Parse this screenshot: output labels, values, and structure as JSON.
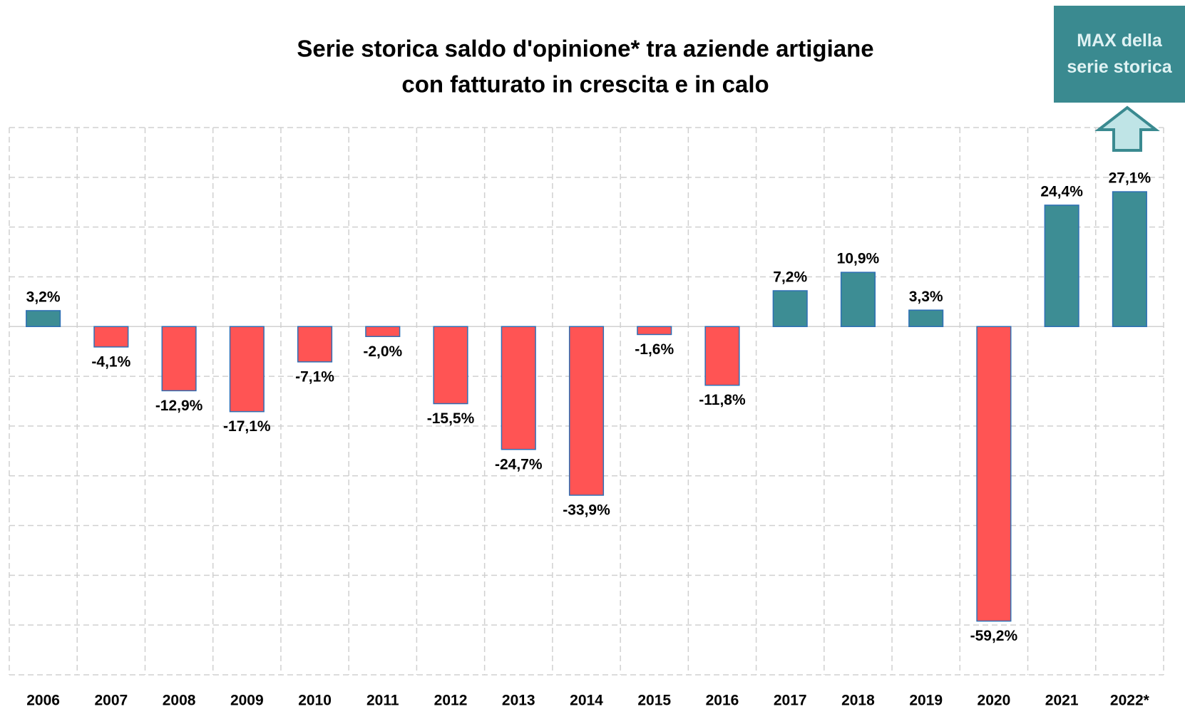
{
  "chart_data": {
    "type": "bar",
    "title": [
      "Serie storica saldo d'opinione* tra aziende artigiane",
      "con fatturato in crescita e in calo"
    ],
    "categories": [
      "2006",
      "2007",
      "2008",
      "2009",
      "2010",
      "2011",
      "2012",
      "2013",
      "2014",
      "2015",
      "2016",
      "2017",
      "2018",
      "2019",
      "2020",
      "2021",
      "2022*"
    ],
    "values": [
      3.2,
      -4.1,
      -12.9,
      -17.1,
      -7.1,
      -2.0,
      -15.5,
      -24.7,
      -33.9,
      -1.6,
      -11.8,
      7.2,
      10.9,
      3.3,
      -59.2,
      24.4,
      27.1
    ],
    "value_labels": [
      "3,2%",
      "-4,1%",
      "-12,9%",
      "-17,1%",
      "-7,1%",
      "-2,0%",
      "-15,5%",
      "-24,7%",
      "-33,9%",
      "-1,6%",
      "-11,8%",
      "7,2%",
      "10,9%",
      "3,3%",
      "-59,2%",
      "24,4%",
      "27,1%"
    ],
    "positive_color": "#3d8d94",
    "negative_color": "#ff5454",
    "ylim": [
      -70,
      40
    ],
    "yticks": [
      -70,
      -60,
      -50,
      -40,
      -30,
      -20,
      -10,
      0,
      10,
      20,
      30,
      40
    ],
    "grid": true,
    "annotation": "MAX della serie storica"
  }
}
